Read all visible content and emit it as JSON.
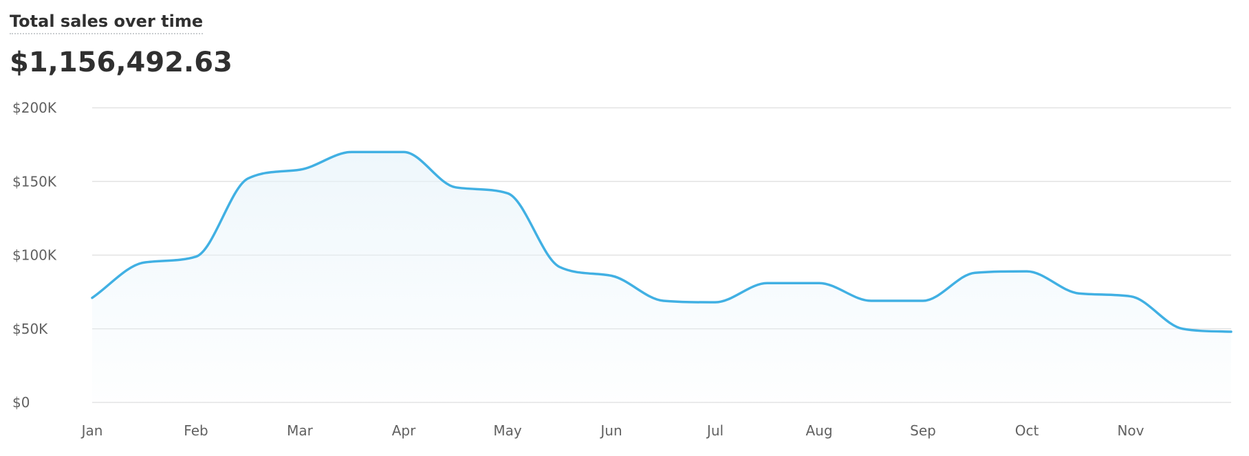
{
  "title": "Total sales over time",
  "total": "$1,156,492.63",
  "chart_data": {
    "type": "area",
    "title": "Total sales over time",
    "xlabel": "",
    "ylabel": "",
    "x_tick_labels": [
      "Jan",
      "Feb",
      "Mar",
      "Apr",
      "May",
      "Jun",
      "Jul",
      "Aug",
      "Sep",
      "Oct",
      "Nov"
    ],
    "y_tick_labels": [
      "$0",
      "$50K",
      "$100K",
      "$150K",
      "$200K"
    ],
    "y_ticks": [
      0,
      50000,
      100000,
      150000,
      200000
    ],
    "ylim": [
      0,
      200000
    ],
    "grid": true,
    "legend": "none",
    "line_color": "#41b0e3",
    "fill_color": "#e6f3fa",
    "series": [
      {
        "x": [
          0,
          0.5,
          1,
          1.5,
          2,
          2.5,
          3,
          3.5,
          4,
          4.5,
          5,
          5.5,
          6,
          6.5,
          7,
          7.5,
          8,
          8.5,
          9,
          9.5,
          10,
          10.5,
          11
        ],
        "values": [
          71000,
          95000,
          99000,
          152000,
          158000,
          170000,
          170000,
          146000,
          142000,
          92000,
          86000,
          69000,
          68000,
          81000,
          81000,
          69000,
          69000,
          88000,
          89000,
          74000,
          72000,
          50000,
          48000
        ]
      }
    ]
  }
}
